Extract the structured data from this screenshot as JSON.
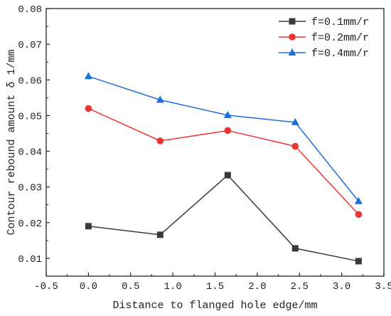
{
  "chart_data": {
    "type": "line",
    "xlabel": "Distance to flanged hole edge/mm",
    "ylabel": "Contour rebound amount δ 1/mm",
    "xlim": [
      -0.5,
      3.5
    ],
    "ylim": [
      0.005,
      0.08
    ],
    "xticks": [
      "-0.5",
      "0.0",
      "0.5",
      "1.0",
      "1.5",
      "2.0",
      "2.5",
      "3.0",
      "3.5"
    ],
    "yticks": [
      "0.01",
      "0.02",
      "0.03",
      "0.04",
      "0.05",
      "0.06",
      "0.07",
      "0.08"
    ],
    "grid": false,
    "legend_position": "top-right",
    "series": [
      {
        "name": "f=0.1mm/r",
        "color": "#3a3a3a",
        "marker": "square",
        "x": [
          0.0,
          0.85,
          1.65,
          2.45,
          3.2
        ],
        "y": [
          0.019,
          0.0166,
          0.0333,
          0.0128,
          0.0092
        ]
      },
      {
        "name": "f=0.2mm/r",
        "color": "#ee3333",
        "marker": "circle",
        "x": [
          0.0,
          0.85,
          1.65,
          2.45,
          3.2
        ],
        "y": [
          0.052,
          0.0429,
          0.0458,
          0.0414,
          0.0223
        ]
      },
      {
        "name": "f=0.4mm/r",
        "color": "#1a6fdc",
        "marker": "triangle",
        "x": [
          0.0,
          0.85,
          1.65,
          2.45,
          3.2
        ],
        "y": [
          0.061,
          0.0544,
          0.0501,
          0.0481,
          0.026
        ]
      }
    ]
  }
}
